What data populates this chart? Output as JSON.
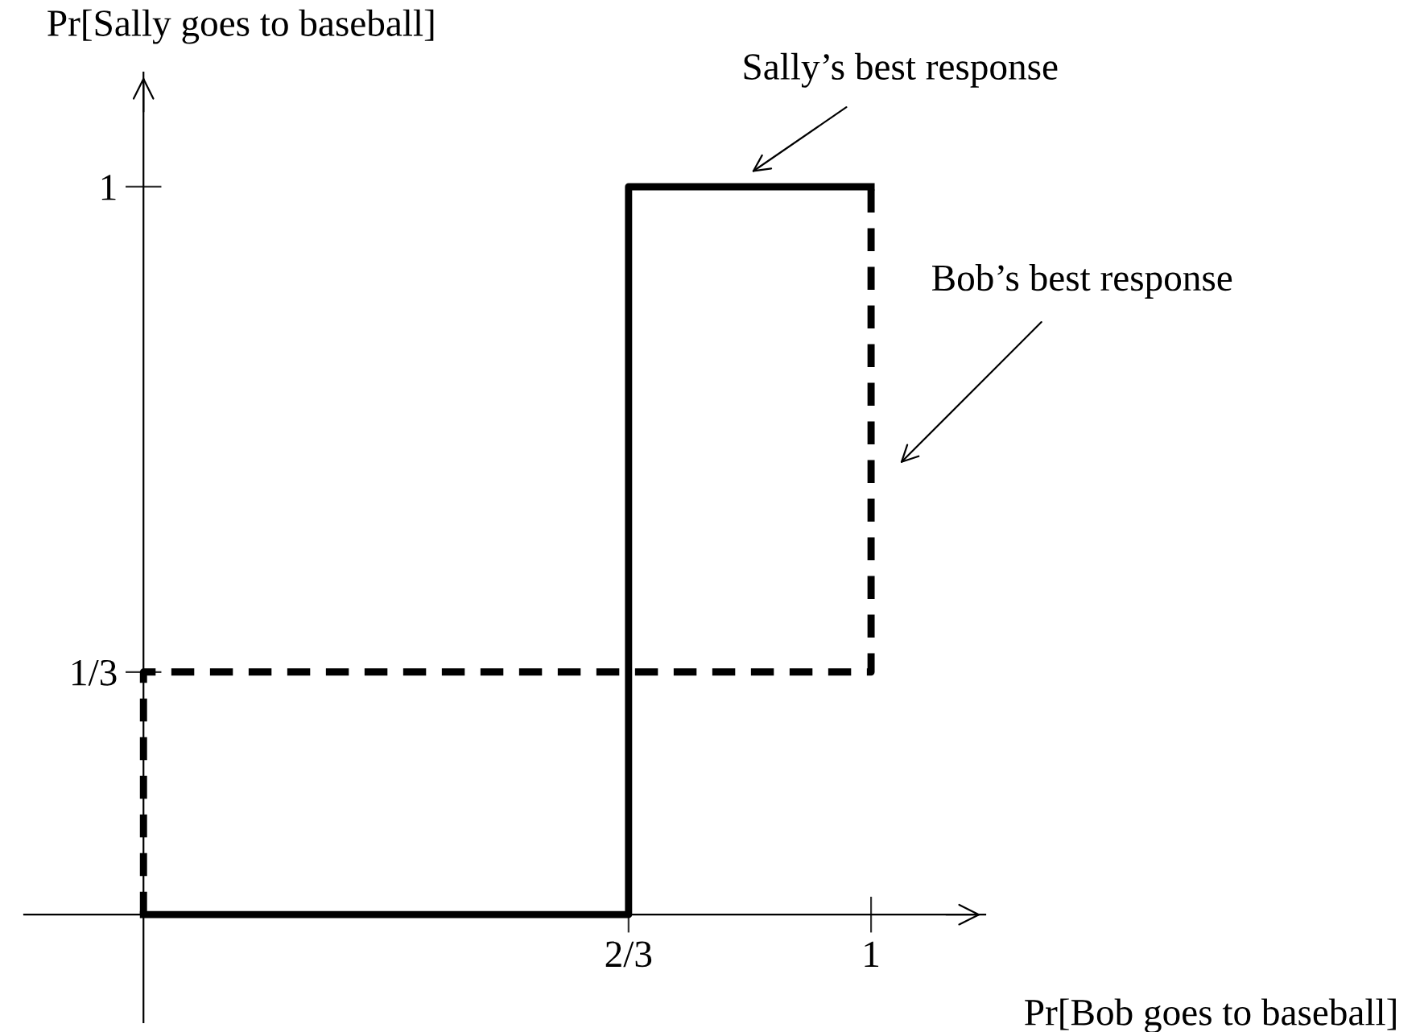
{
  "chart_data": {
    "type": "line",
    "xlabel": "Pr[Bob goes to baseball]",
    "ylabel": "Pr[Sally goes to baseball]",
    "xlim": [
      -0.164,
      1.157
    ],
    "ylim": [
      -0.148,
      1.157
    ],
    "xticks": [
      {
        "value": 0.6667,
        "label": "2/3"
      },
      1
    ],
    "yticks": [
      {
        "value": 0.3333,
        "label": "1/3"
      },
      1
    ],
    "grid": false,
    "legend": false,
    "marker": "none",
    "series": [
      {
        "name": "Sally’s best response",
        "color": "#000000",
        "line_style": "solid",
        "x": [
          0,
          0.6667,
          0.6667,
          1
        ],
        "values": [
          0,
          0,
          1,
          1
        ]
      },
      {
        "name": "Bob’s best response",
        "color": "#000000",
        "line_style": "dashed",
        "x": [
          0,
          0,
          1,
          1
        ],
        "values": [
          0,
          0.3333,
          0.3333,
          1
        ]
      }
    ]
  }
}
